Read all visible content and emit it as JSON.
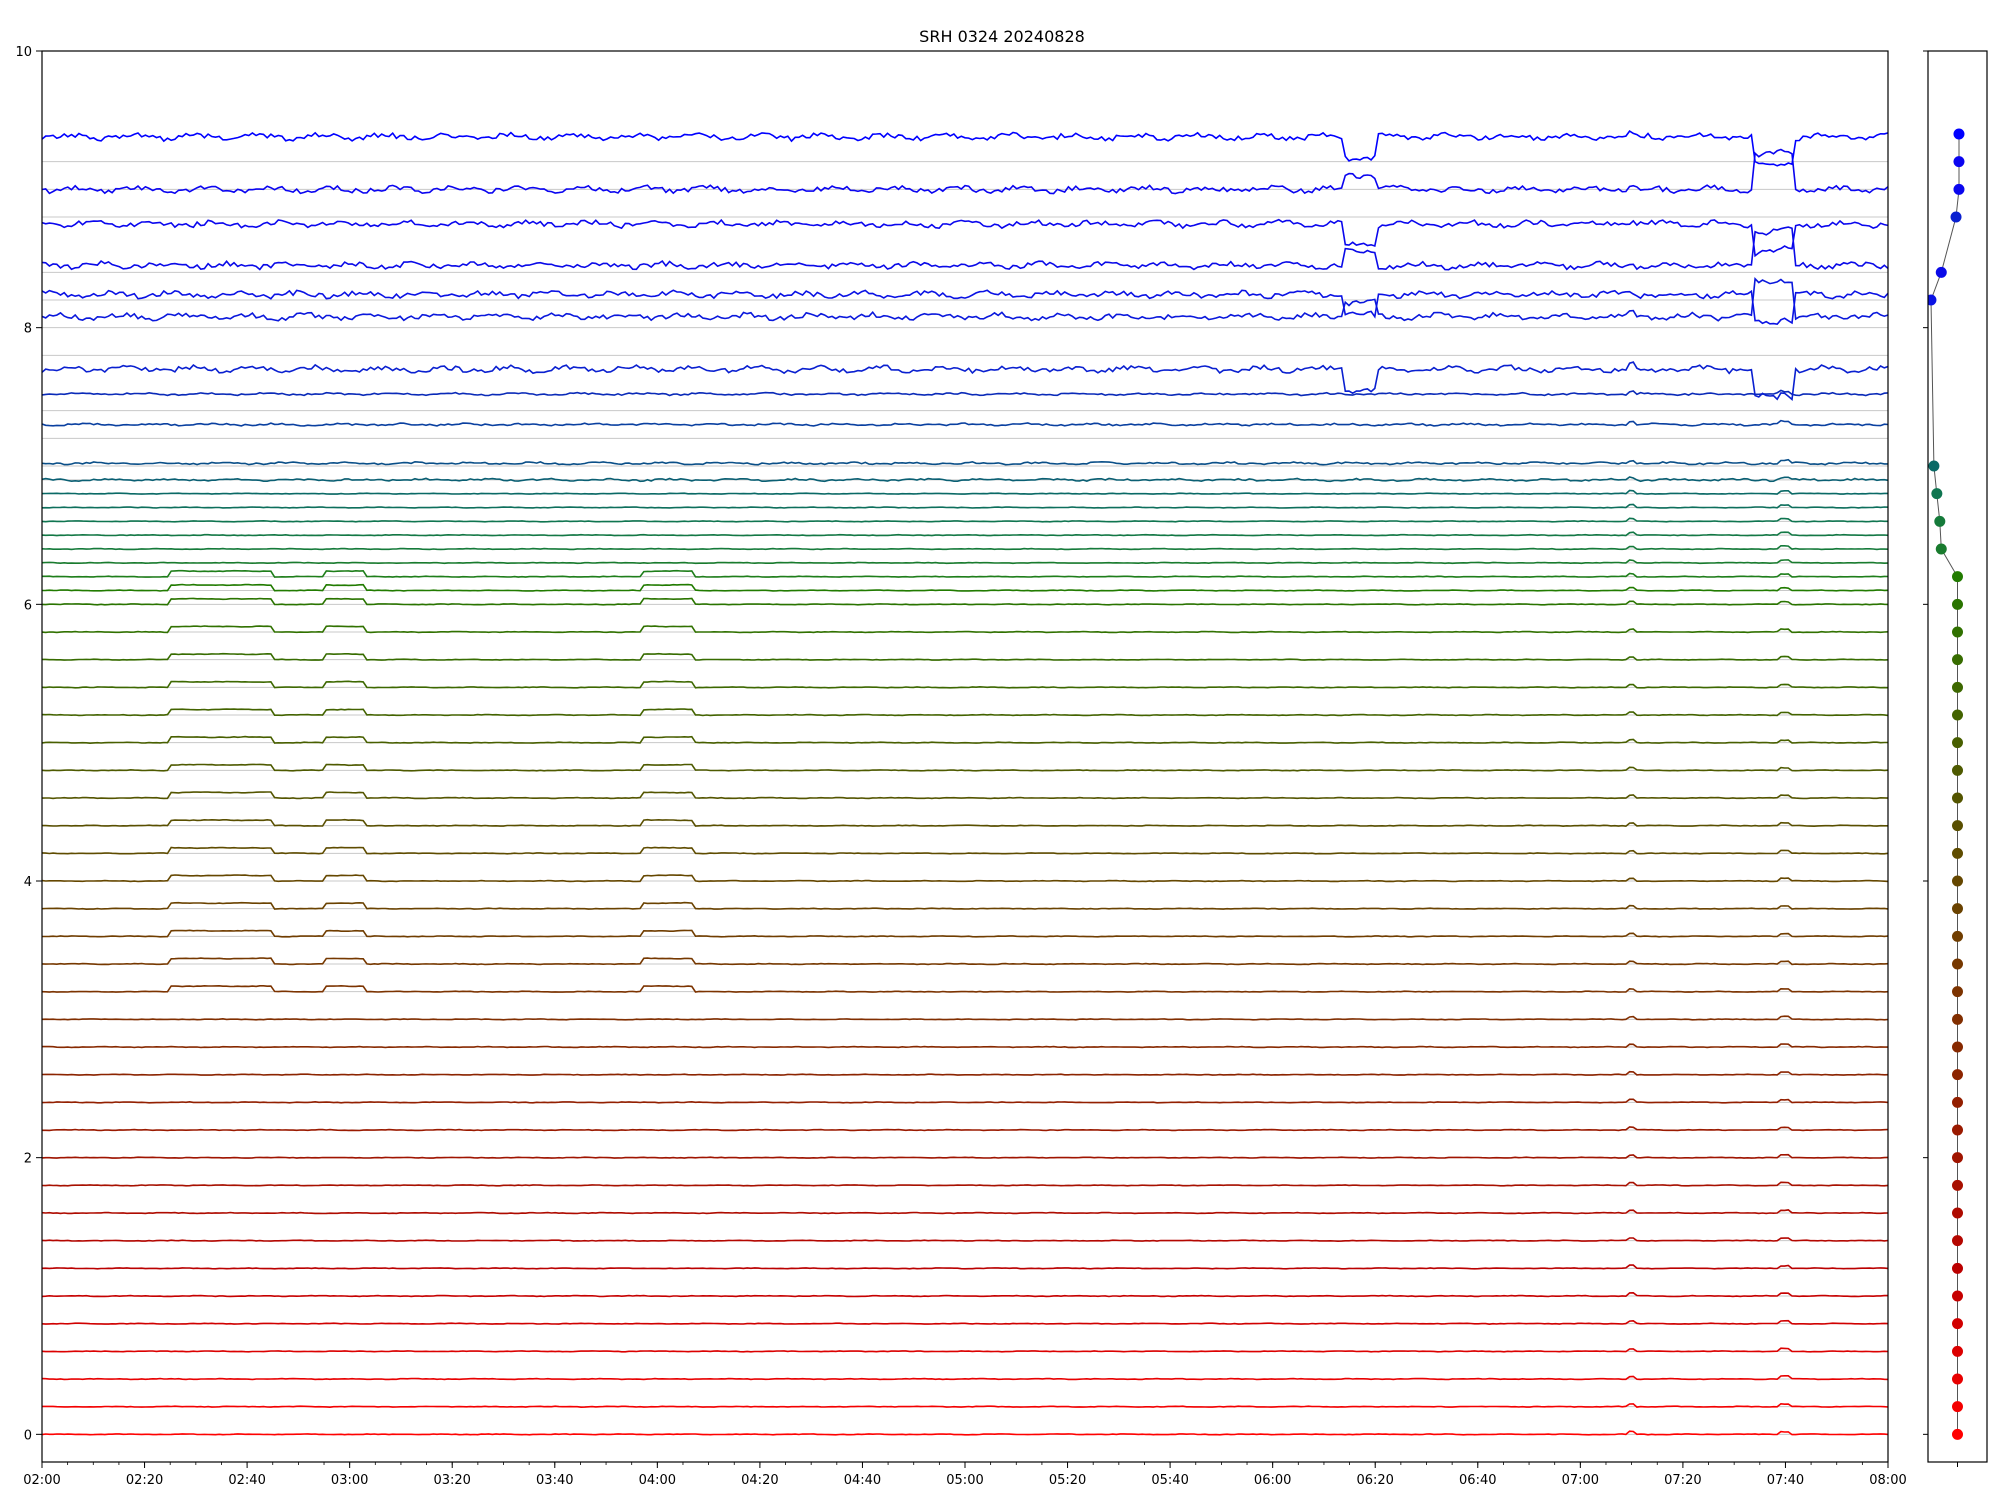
{
  "chart_data": [
    {
      "type": "line",
      "title": "SRH 0324 20240828",
      "xlabel": "",
      "ylabel": "",
      "xlim": [
        "02:00",
        "08:00"
      ],
      "ylim": [
        -0.2,
        10
      ],
      "x_ticks": [
        "02:00",
        "02:20",
        "02:40",
        "03:00",
        "03:20",
        "03:40",
        "04:00",
        "04:20",
        "04:40",
        "05:00",
        "05:20",
        "05:40",
        "06:00",
        "06:20",
        "06:40",
        "07:00",
        "07:20",
        "07:40",
        "08:00"
      ],
      "y_ticks": [
        "0",
        "2",
        "4",
        "6",
        "8",
        "10"
      ],
      "grid": "horizontal baselines",
      "trace_count": 50,
      "trace_baselines": [
        0.0,
        0.2,
        0.4,
        0.6,
        0.8,
        1.0,
        1.2,
        1.4,
        1.6,
        1.8,
        2.0,
        2.2,
        2.4,
        2.6,
        2.8,
        3.0,
        3.2,
        3.4,
        3.6,
        3.8,
        4.0,
        4.2,
        4.4,
        4.6,
        4.8,
        5.0,
        5.2,
        5.4,
        5.6,
        5.8,
        6.0,
        6.1,
        6.2,
        6.3,
        6.4,
        6.5,
        6.6,
        6.7,
        6.8,
        6.9,
        7.0,
        7.2,
        7.4,
        7.8,
        8.0,
        8.2,
        8.4,
        8.8,
        9.0,
        9.2
      ],
      "trace_offsets": [
        0.0,
        0.0,
        0.0,
        0.0,
        0.0,
        0.0,
        0.0,
        0.0,
        0.0,
        0.0,
        0.0,
        0.0,
        0.0,
        0.0,
        0.0,
        0.0,
        0.0,
        0.0,
        0.0,
        0.0,
        0.0,
        0.0,
        0.0,
        0.0,
        0.0,
        0.0,
        0.0,
        0.0,
        0.0,
        0.0,
        0.0,
        0.0,
        0.0,
        0.0,
        0.0,
        0.0,
        0.0,
        0.0,
        0.0,
        0.0,
        0.02,
        0.1,
        0.12,
        -0.1,
        0.08,
        0.04,
        0.05,
        -0.05,
        0.0,
        0.18
      ],
      "trace_colors": [
        "#ff0000",
        "#f40000",
        "#e80000",
        "#dc0000",
        "#d10000",
        "#c60000",
        "#bb0000",
        "#b40600",
        "#ae0b00",
        "#a81000",
        "#a01400",
        "#9a1a00",
        "#931f00",
        "#8c2400",
        "#872900",
        "#812e00",
        "#7c3300",
        "#763800",
        "#703d00",
        "#6a4200",
        "#654700",
        "#5f4c00",
        "#594f00",
        "#545500",
        "#4e5a00",
        "#485f00",
        "#436300",
        "#3d6800",
        "#376c00",
        "#317100",
        "#2a7400",
        "#217b00",
        "#1e7e1a",
        "#197b2e",
        "#157a3a",
        "#137845",
        "#0f7550",
        "#0d6f5c",
        "#0a6a66",
        "#0a5f73",
        "#0a4f88",
        "#0a40a0",
        "#0a2ab8",
        "#0a20d0",
        "#0a18dc",
        "#0a12e4",
        "#0a0ae8",
        "#0a06ee",
        "#0a04f0",
        "#0000ff"
      ]
    },
    {
      "type": "scatter",
      "xlim": [
        -1,
        1
      ],
      "ylim": [
        -0.2,
        10
      ],
      "points": [
        {
          "x": 0.0,
          "y": 0.0,
          "color": "#ff0000"
        },
        {
          "x": 0.0,
          "y": 0.2,
          "color": "#f40000"
        },
        {
          "x": 0.0,
          "y": 0.4,
          "color": "#e80000"
        },
        {
          "x": 0.0,
          "y": 0.6,
          "color": "#dc0000"
        },
        {
          "x": 0.0,
          "y": 0.8,
          "color": "#d10000"
        },
        {
          "x": 0.0,
          "y": 1.0,
          "color": "#c60000"
        },
        {
          "x": 0.0,
          "y": 1.2,
          "color": "#bb0000"
        },
        {
          "x": 0.0,
          "y": 1.4,
          "color": "#b40600"
        },
        {
          "x": 0.0,
          "y": 1.6,
          "color": "#ae0b00"
        },
        {
          "x": 0.0,
          "y": 1.8,
          "color": "#a81000"
        },
        {
          "x": 0.0,
          "y": 2.0,
          "color": "#a01400"
        },
        {
          "x": 0.0,
          "y": 2.2,
          "color": "#9a1a00"
        },
        {
          "x": 0.0,
          "y": 2.4,
          "color": "#931f00"
        },
        {
          "x": 0.0,
          "y": 2.6,
          "color": "#8c2400"
        },
        {
          "x": 0.0,
          "y": 2.8,
          "color": "#872900"
        },
        {
          "x": 0.0,
          "y": 3.0,
          "color": "#812e00"
        },
        {
          "x": 0.0,
          "y": 3.2,
          "color": "#7c3300"
        },
        {
          "x": 0.0,
          "y": 3.4,
          "color": "#763800"
        },
        {
          "x": 0.0,
          "y": 3.6,
          "color": "#703d00"
        },
        {
          "x": 0.0,
          "y": 3.8,
          "color": "#6a4200"
        },
        {
          "x": 0.0,
          "y": 4.0,
          "color": "#654700"
        },
        {
          "x": 0.0,
          "y": 4.2,
          "color": "#5f4c00"
        },
        {
          "x": 0.0,
          "y": 4.4,
          "color": "#594f00"
        },
        {
          "x": 0.0,
          "y": 4.6,
          "color": "#545500"
        },
        {
          "x": 0.0,
          "y": 4.8,
          "color": "#4e5a00"
        },
        {
          "x": 0.0,
          "y": 5.0,
          "color": "#485f00"
        },
        {
          "x": 0.0,
          "y": 5.2,
          "color": "#436300"
        },
        {
          "x": 0.0,
          "y": 5.4,
          "color": "#3d6800"
        },
        {
          "x": 0.0,
          "y": 5.6,
          "color": "#376c00"
        },
        {
          "x": 0.0,
          "y": 5.8,
          "color": "#317100"
        },
        {
          "x": 0.0,
          "y": 6.0,
          "color": "#2a7400"
        },
        {
          "x": 0.0,
          "y": 6.2,
          "color": "#217b00"
        },
        {
          "x": -0.55,
          "y": 6.4,
          "color": "#197b2e"
        },
        {
          "x": -0.6,
          "y": 6.6,
          "color": "#157a3a"
        },
        {
          "x": -0.7,
          "y": 6.8,
          "color": "#0f7550"
        },
        {
          "x": -0.8,
          "y": 7.0,
          "color": "#0a6a66"
        },
        {
          "x": -0.9,
          "y": 8.2,
          "color": "#0a12e4"
        },
        {
          "x": -0.55,
          "y": 8.4,
          "color": "#0a0ae8"
        },
        {
          "x": -0.05,
          "y": 8.8,
          "color": "#0a20d0"
        },
        {
          "x": 0.05,
          "y": 9.0,
          "color": "#0a06ee"
        },
        {
          "x": 0.05,
          "y": 9.2,
          "color": "#0a04f0"
        },
        {
          "x": 0.05,
          "y": 9.4,
          "color": "#0000ff"
        }
      ]
    }
  ]
}
